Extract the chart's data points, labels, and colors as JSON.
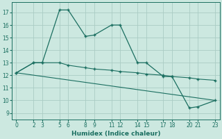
{
  "xlabel": "Humidex (Indice chaleur)",
  "bg_color": "#cce8e0",
  "grid_color": "#aaccC4",
  "line_color": "#1a6e60",
  "x_ticks": [
    0,
    2,
    3,
    5,
    6,
    8,
    9,
    11,
    12,
    14,
    15,
    17,
    18,
    20,
    21,
    23
  ],
  "y_ticks": [
    9,
    10,
    11,
    12,
    13,
    14,
    15,
    16,
    17
  ],
  "xlim": [
    -0.5,
    23.5
  ],
  "ylim": [
    8.5,
    17.8
  ],
  "line1_x": [
    0,
    2,
    3,
    5,
    6,
    8,
    9,
    11,
    12,
    14,
    15,
    17,
    18,
    20,
    21,
    23
  ],
  "line1_y": [
    12.2,
    13.0,
    13.0,
    17.2,
    17.2,
    15.1,
    15.2,
    16.0,
    16.0,
    13.0,
    13.0,
    11.9,
    11.9,
    9.4,
    9.5,
    10.0
  ],
  "line2_x": [
    0,
    2,
    3,
    5,
    6,
    8,
    9,
    11,
    12,
    14,
    15,
    17,
    18,
    20,
    21,
    23
  ],
  "line2_y": [
    12.2,
    13.0,
    13.0,
    13.0,
    12.8,
    12.6,
    12.5,
    12.4,
    12.3,
    12.2,
    12.1,
    12.0,
    11.9,
    11.8,
    11.7,
    11.6
  ],
  "line3_x": [
    0,
    23
  ],
  "line3_y": [
    12.2,
    10.0
  ]
}
